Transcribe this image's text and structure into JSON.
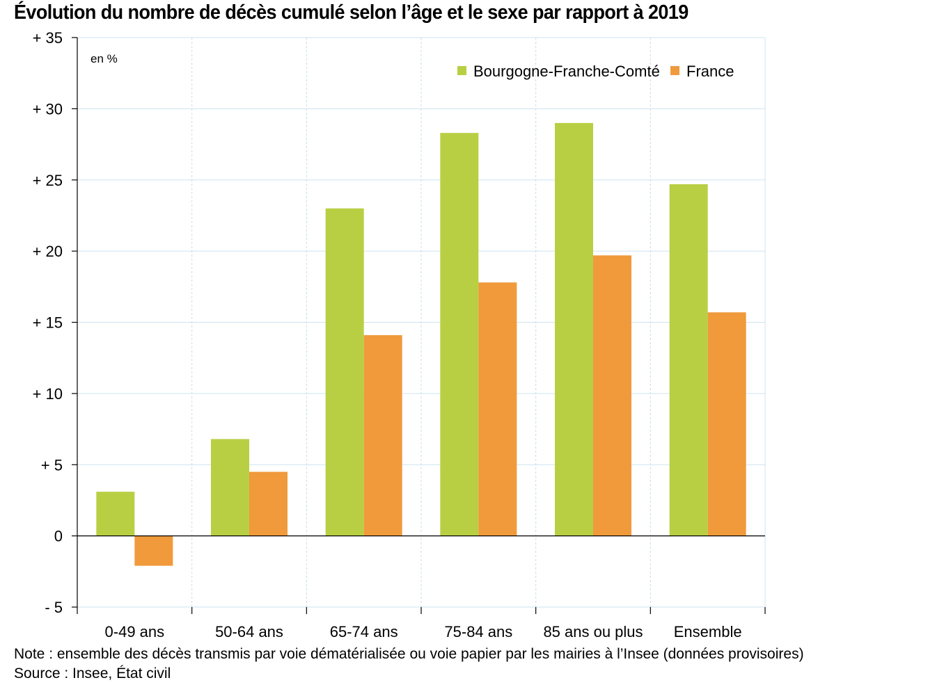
{
  "title": "Évolution du nombre de décès cumulé selon l’âge et le sexe par rapport à 2019",
  "note": "Note : ensemble des décès transmis par voie dématérialisée ou voie papier par les mairies à l’Insee (données provisoires)",
  "source": "Source : Insee, État civil",
  "chart_data": {
    "type": "bar",
    "title": "Évolution du nombre de décès cumulé selon l’âge et le sexe par rapport à 2019",
    "unit_label": "en %",
    "categories": [
      "0-49 ans",
      "50-64 ans",
      "65-74 ans",
      "75-84 ans",
      "85 ans ou plus",
      "Ensemble"
    ],
    "series": [
      {
        "name": "Bourgogne-Franche-Comté",
        "color": "#b8cf43",
        "values": [
          3.1,
          6.8,
          23.0,
          28.3,
          29.0,
          24.7
        ]
      },
      {
        "name": "France",
        "color": "#f09a3c",
        "values": [
          -2.1,
          4.5,
          14.1,
          17.8,
          19.7,
          15.7
        ]
      }
    ],
    "ylim": [
      -5,
      35
    ],
    "yticks": [
      -5,
      0,
      5,
      10,
      15,
      20,
      25,
      30,
      35
    ],
    "ytick_labels": [
      "- 5",
      "0",
      "+ 5",
      "+ 10",
      "+ 15",
      "+ 20",
      "+ 25",
      "+ 30",
      "+ 35"
    ],
    "xlabel": "",
    "ylabel": "",
    "grid": true,
    "legend_position": "top-right"
  }
}
